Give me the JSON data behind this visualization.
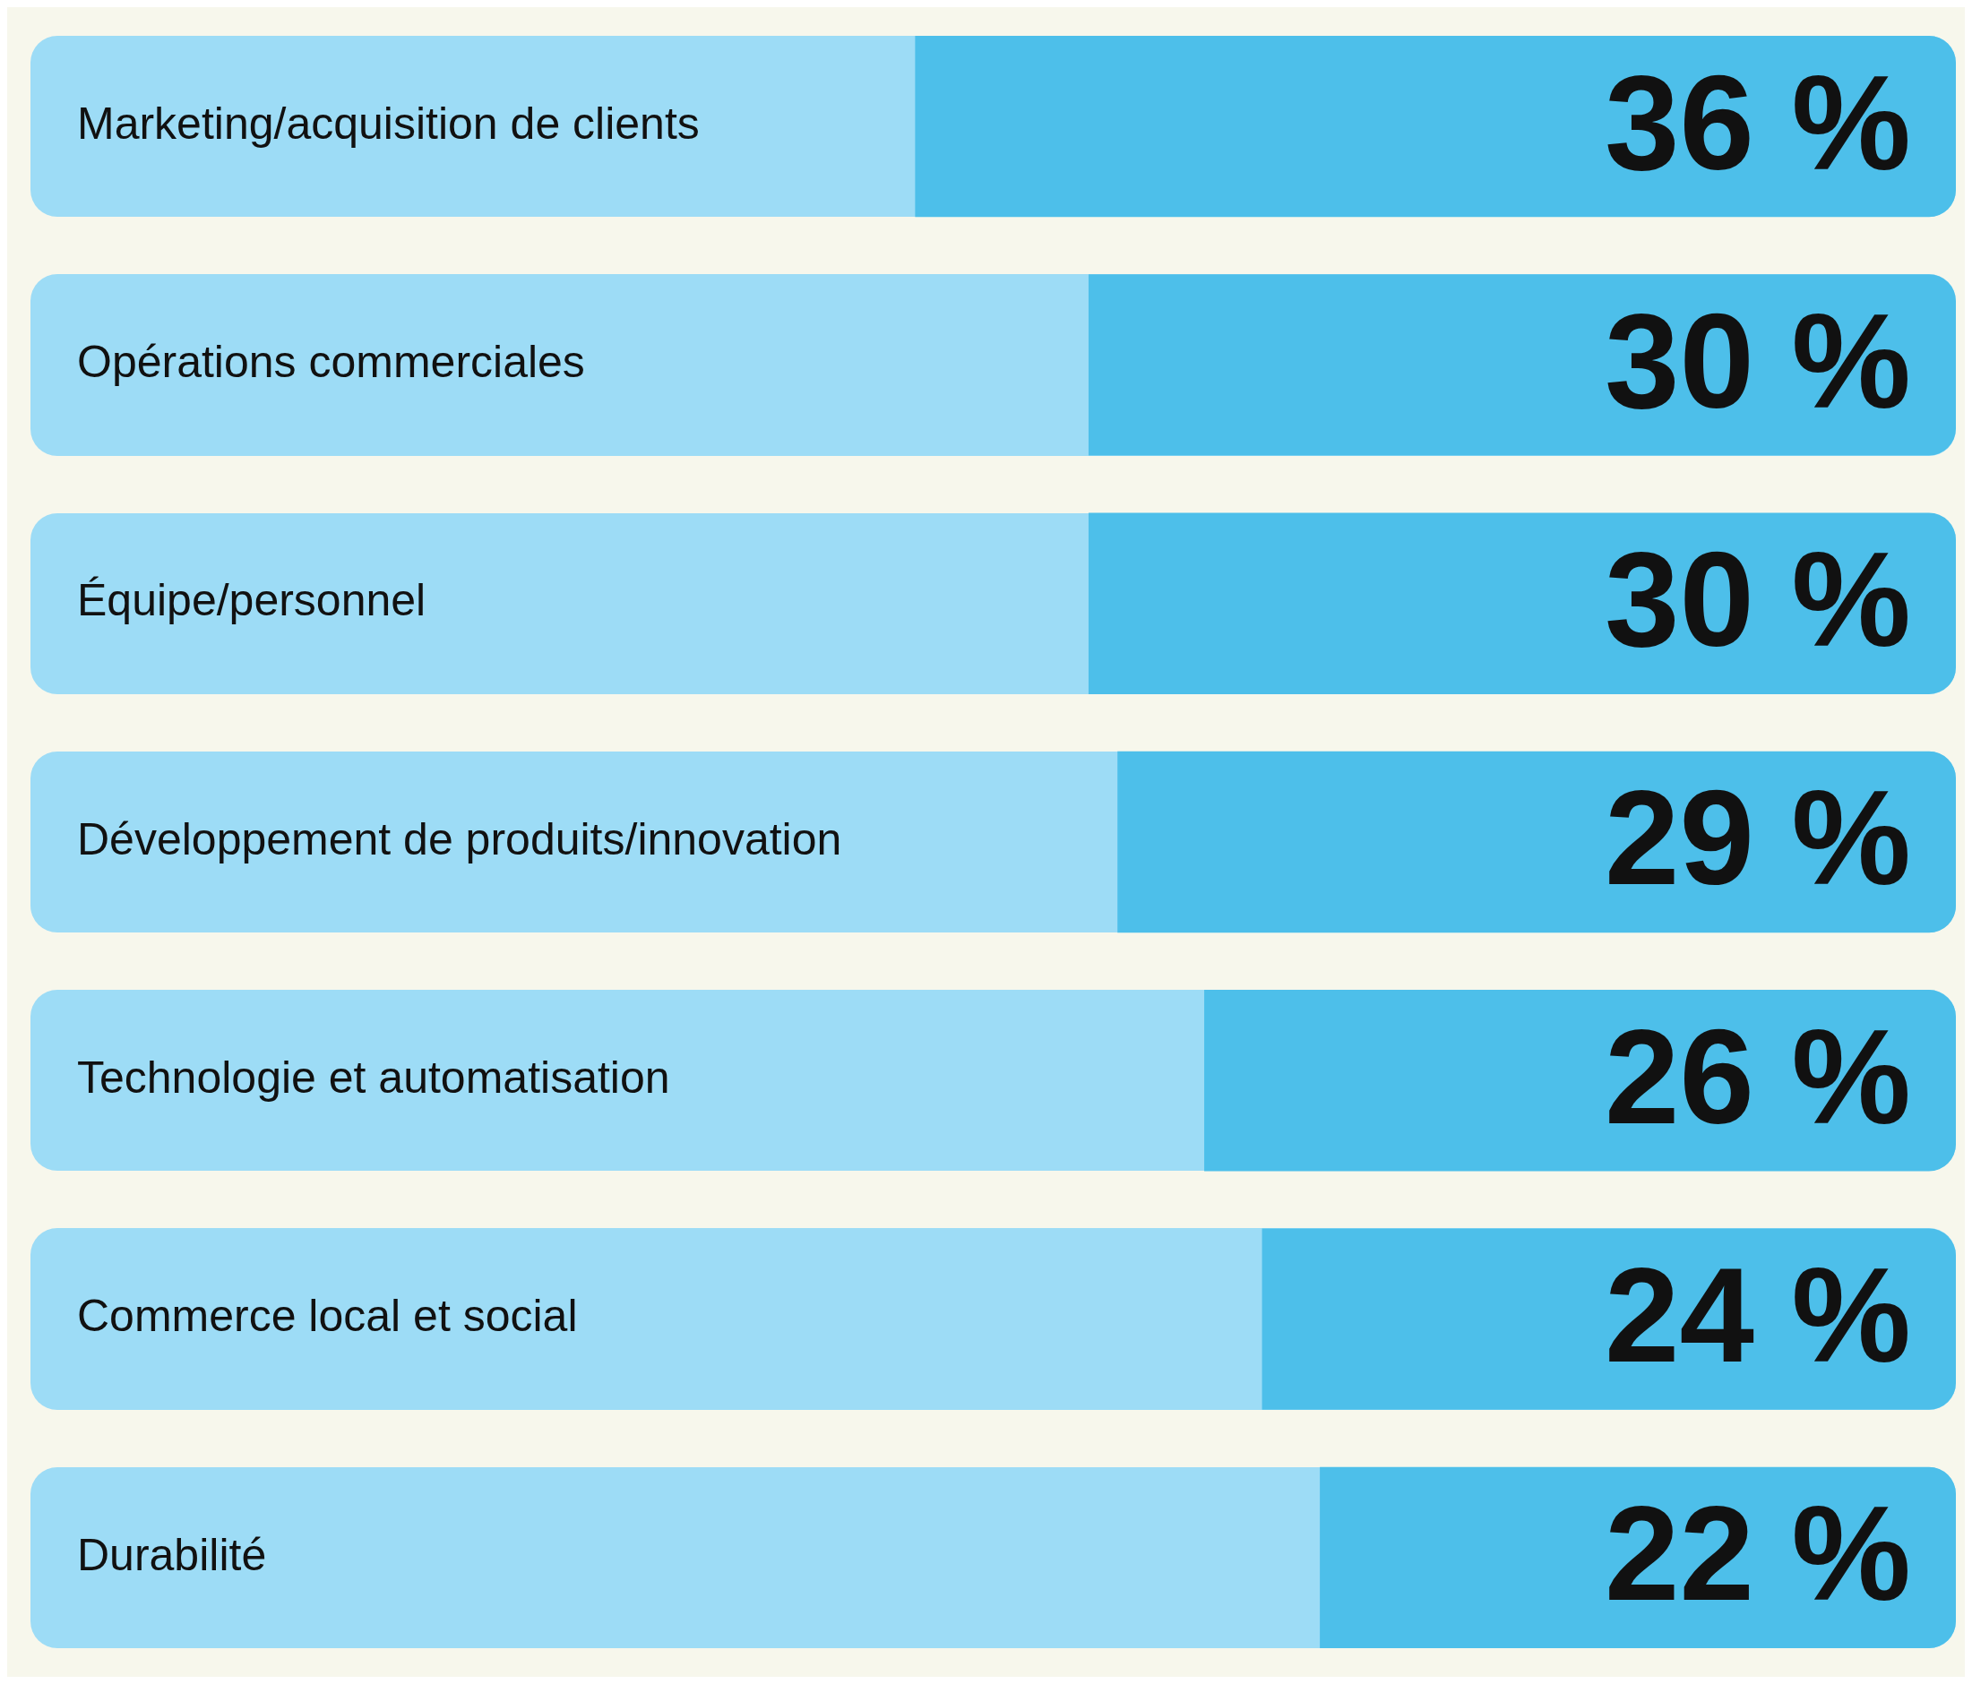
{
  "chart_data": {
    "type": "bar",
    "orientation": "horizontal",
    "categories": [
      "Marketing/acquisition de clients",
      "Opérations commerciales",
      "Équipe/personnel",
      "Développement de produits/innovation",
      "Technologie et automatisation",
      "Commerce local et social",
      "Durabilité"
    ],
    "values": [
      36,
      30,
      30,
      29,
      26,
      24,
      22
    ],
    "color": "#4dbfea",
    "value_labels": [
      "36 %",
      "30 %",
      "30 %",
      "29 %",
      "26 %",
      "24 %",
      "22 %"
    ]
  }
}
